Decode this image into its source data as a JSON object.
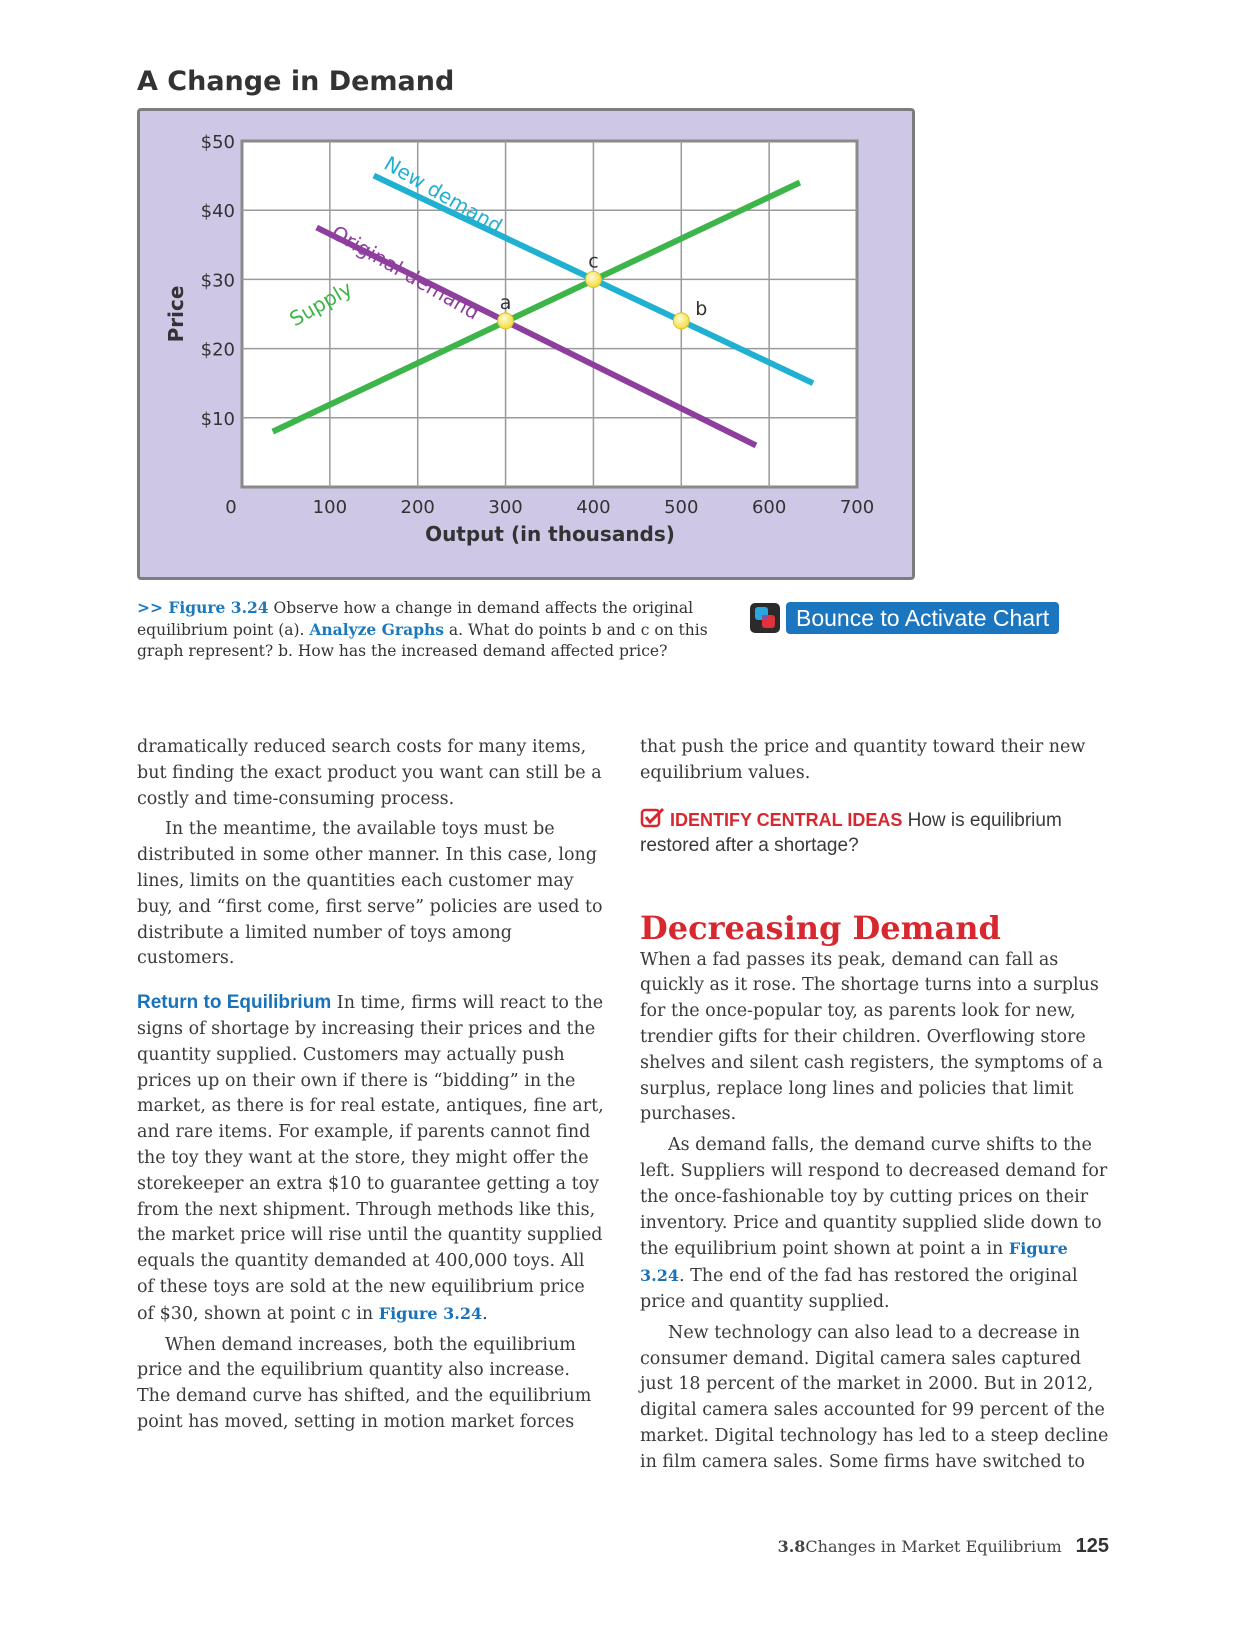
{
  "chart_title": "A Change in Demand",
  "chart_data": {
    "type": "line",
    "ylabel": "Price",
    "xlabel": "Output (in thousands)",
    "y_ticks": [
      "$10",
      "$20",
      "$30",
      "$40",
      "$50"
    ],
    "x_ticks": [
      "0",
      "100",
      "200",
      "300",
      "400",
      "500",
      "600",
      "700"
    ],
    "xlim": [
      0,
      700
    ],
    "ylim": [
      0,
      50
    ],
    "grid": true,
    "series": [
      {
        "name": "Supply",
        "color": "#3db54a",
        "points": [
          [
            35,
            8
          ],
          [
            635,
            44
          ]
        ]
      },
      {
        "name": "Original demand",
        "color": "#8e3f9d",
        "points": [
          [
            85,
            37.5
          ],
          [
            585,
            6
          ]
        ]
      },
      {
        "name": "New demand",
        "color": "#20b0d1",
        "points": [
          [
            150,
            45
          ],
          [
            650,
            15
          ]
        ]
      }
    ],
    "points": [
      {
        "label": "a",
        "x": 300,
        "y": 24
      },
      {
        "label": "c",
        "x": 400,
        "y": 30
      },
      {
        "label": "b",
        "x": 500,
        "y": 24
      }
    ]
  },
  "caption": {
    "prefix": ">> ",
    "figure": "Figure 3.24",
    "text1": " Observe how a change in demand affects the original equilibrium point (a). ",
    "analyze": "Analyze Graphs",
    "text2": "  a. What do points b and c on this graph represent? b. How has the increased demand affected price?"
  },
  "bounce_label": "Bounce to Activate Chart",
  "left_column": {
    "p1": "dramatically reduced search costs for many items, but finding the exact product you want can still be a costly and time-consuming process.",
    "p2": "In the meantime, the available toys must be distributed in some other manner. In this case, long lines, limits on the quantities each customer may buy, and “first come, first serve” policies are used to distribute a limited number of toys among customers.",
    "head": "Return to Equilibrium",
    "p3": " In time, firms will react to the signs of shortage by increasing their prices and the quantity supplied. Customers may actually push prices up on their own if there is “bidding” in the market, as there is for real estate, antiques, fine art, and rare items. For example, if parents cannot find the toy they want at the store, they might offer the storekeeper an extra $10 to guarantee getting a toy from the next shipment. Through methods like this, the market price will rise until the quantity supplied equals the quantity demanded at 400,000 toys. All of these toys are sold at the new equilibrium price of $30, shown at point c in ",
    "p3_ref": "Figure 3.24",
    "p3_end": ".",
    "p4": "When demand increases, both the equilibrium price and the equilibrium quantity also increase. The demand curve has shifted, and the equilibrium point has moved, setting in motion market forces"
  },
  "right_column": {
    "p1": "that push the price and quantity toward their new equilibrium values.",
    "identify_label": "IDENTIFY CENTRAL IDEAS",
    "identify_text": " How is equilibrium restored after a shortage?",
    "heading": "Decreasing Demand",
    "p2": "When a fad passes its peak, demand can fall as quickly as it rose. The shortage turns into a surplus for the once-popular toy, as parents look for new, trendier gifts for their children. Overflowing store shelves and silent cash registers, the symptoms of a surplus, replace long lines and policies that limit purchases.",
    "p3": "As demand falls, the demand curve shifts to the left. Suppliers will respond to decreased demand for the once-fashionable toy by cutting prices on their inventory. Price and quantity supplied slide down to the equilibrium point shown at point a in ",
    "p3_ref": "Figure 3.24",
    "p3_end": ". The end of the fad has restored the original price and quantity supplied.",
    "p4": "New technology can also lead to a decrease in consumer demand. Digital camera sales captured just 18 percent of the market in 2000. But in 2012, digital camera sales accounted for 99 percent of the market. Digital technology has led to a steep decline in film camera sales. Some firms have switched to"
  },
  "footer": {
    "section": "3.8",
    "title": " Changes in Market Equilibrium",
    "page": "125"
  }
}
